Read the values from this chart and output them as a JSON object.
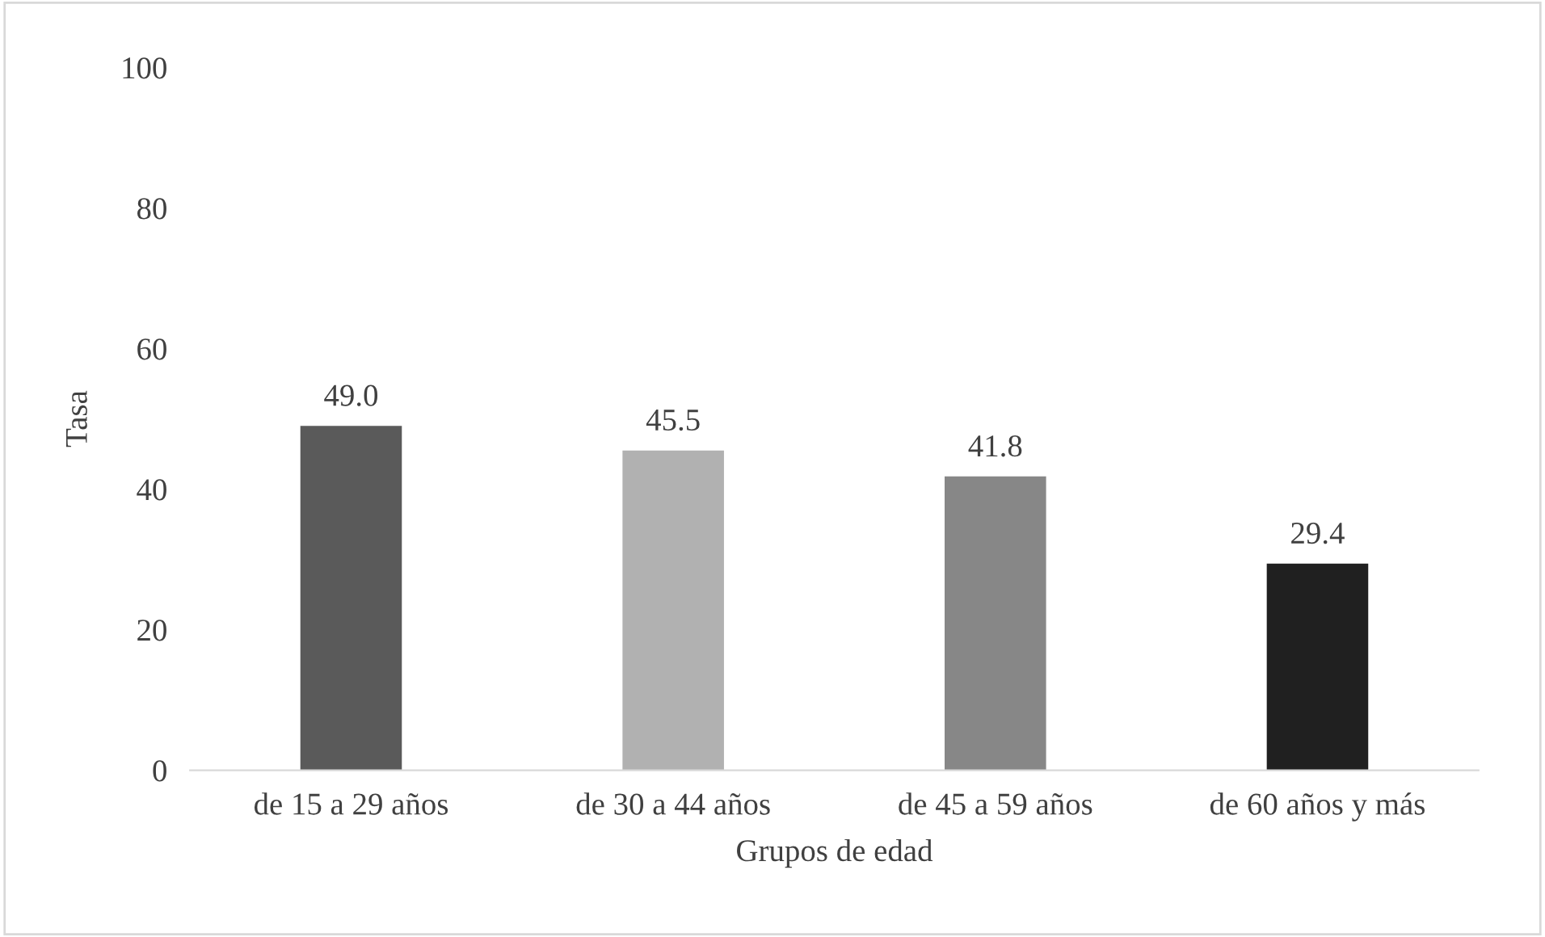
{
  "chart_data": {
    "type": "bar",
    "xlabel": "Grupos de edad",
    "ylabel": "Tasa",
    "categories": [
      "de 15 a 29 años",
      "de 30 a 44 años",
      "de 45 a 59 años",
      "de 60 años y más"
    ],
    "values": [
      49.0,
      45.5,
      41.8,
      29.4
    ],
    "colors": [
      "#5a5a5a",
      "#b1b1b1",
      "#878787",
      "#202020"
    ],
    "value_labels": [
      "49.0",
      "45.5",
      "41.8",
      "29.4"
    ],
    "ylim": [
      0,
      100
    ],
    "yticks": [
      0,
      20,
      40,
      60,
      80,
      100
    ],
    "grid": false
  }
}
